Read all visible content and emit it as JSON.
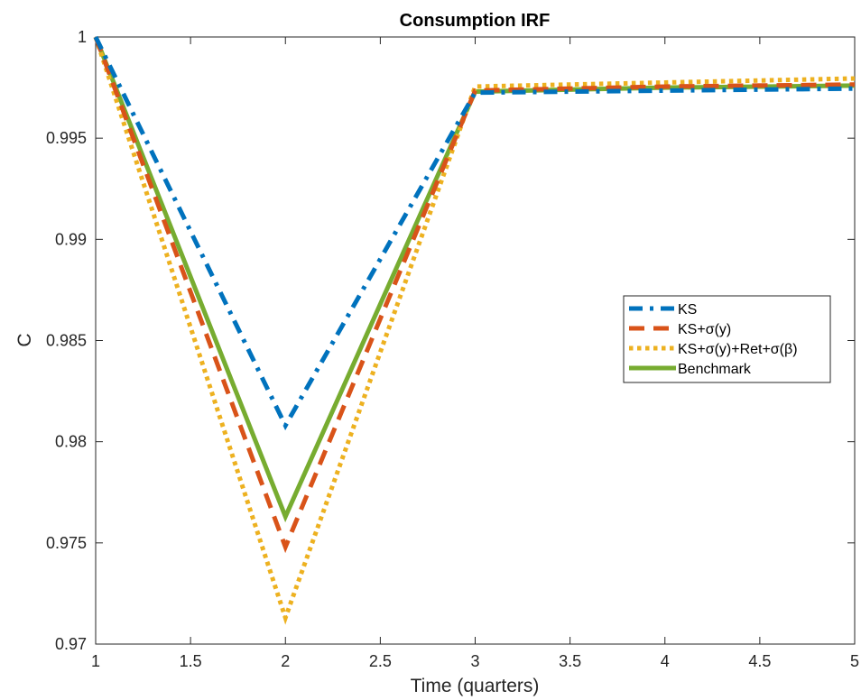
{
  "chart_data": {
    "type": "line",
    "title": "Consumption IRF",
    "xlabel": "Time (quarters)",
    "ylabel": "C",
    "xlim": [
      1,
      5
    ],
    "ylim": [
      0.97,
      1.0
    ],
    "xticks": [
      1,
      1.5,
      2,
      2.5,
      3,
      3.5,
      4,
      4.5,
      5
    ],
    "xtick_labels": [
      "1",
      "1.5",
      "2",
      "2.5",
      "3",
      "3.5",
      "4",
      "4.5",
      "5"
    ],
    "yticks": [
      0.97,
      0.975,
      0.98,
      0.985,
      0.99,
      0.995,
      1.0
    ],
    "ytick_labels": [
      "0.97",
      "0.975",
      "0.98",
      "0.985",
      "0.99",
      "0.995",
      "1"
    ],
    "grid": false,
    "legend_position": "center-right",
    "x": [
      1,
      2,
      3,
      4,
      5
    ],
    "series": [
      {
        "name": "KS",
        "values": [
          1.0,
          0.9808,
          0.99725,
          0.99735,
          0.99745
        ],
        "color": "#0072BD",
        "style": "dashdot"
      },
      {
        "name": "KS+σ(y)",
        "values": [
          1.0,
          0.9748,
          0.99735,
          0.99755,
          0.99765
        ],
        "color": "#D95319",
        "style": "dashed"
      },
      {
        "name": "KS+σ(y)+Ret+σ(β)",
        "values": [
          1.0,
          0.9713,
          0.99755,
          0.99775,
          0.99795
        ],
        "color": "#EDB120",
        "style": "dotted"
      },
      {
        "name": "Benchmark",
        "values": [
          1.0,
          0.9763,
          0.9973,
          0.9975,
          0.9976
        ],
        "color": "#77AC30",
        "style": "solid"
      }
    ]
  }
}
